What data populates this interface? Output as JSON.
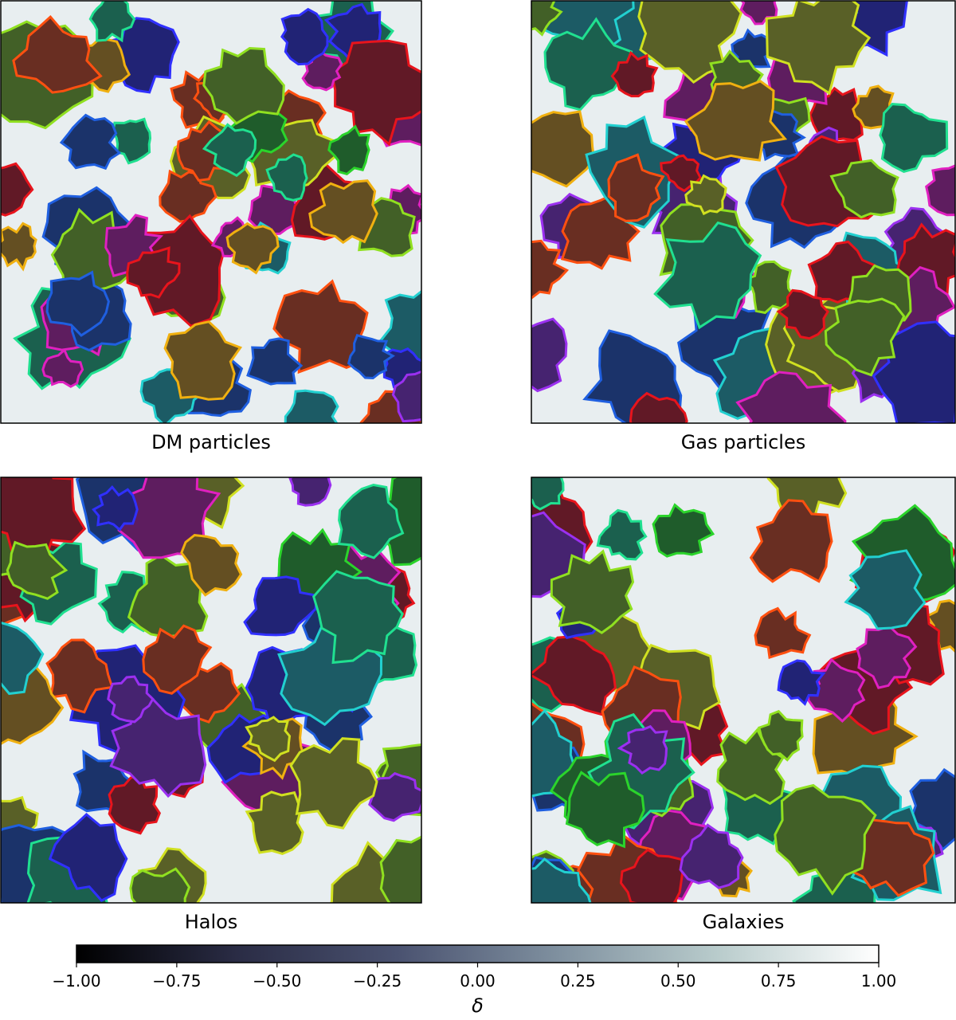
{
  "panels": [
    {
      "caption": "DM particles"
    },
    {
      "caption": "Gas particles"
    },
    {
      "caption": "Halos"
    },
    {
      "caption": "Galaxies"
    }
  ],
  "colorbar": {
    "label": "δ",
    "lim": [
      -1,
      1
    ],
    "ticks": [
      {
        "value": -1,
        "label": "−1.00"
      },
      {
        "value": -0.75,
        "label": "−0.75"
      },
      {
        "value": -0.5,
        "label": "−0.50"
      },
      {
        "value": -0.25,
        "label": "−0.25"
      },
      {
        "value": 0,
        "label": "0.00"
      },
      {
        "value": 0.25,
        "label": "0.25"
      },
      {
        "value": 0.5,
        "label": "0.50"
      },
      {
        "value": 0.75,
        "label": "0.75"
      },
      {
        "value": 1,
        "label": "1.00"
      }
    ],
    "colors": [
      "#000000",
      "#2a2c45",
      "#4a5270",
      "#7f909f",
      "#b9cccc",
      "#ffffff"
    ]
  }
}
